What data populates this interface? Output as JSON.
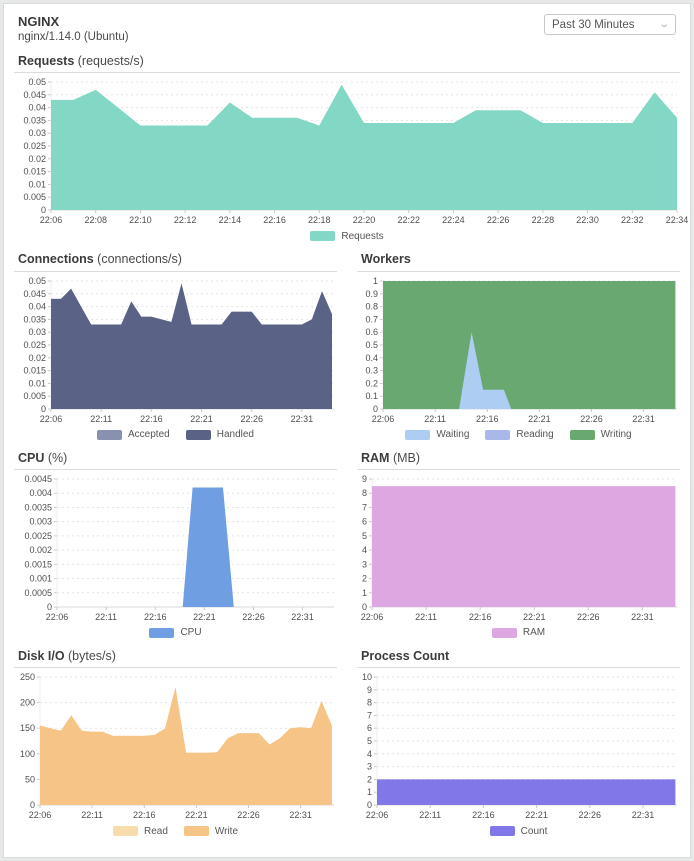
{
  "header": {
    "title": "NGINX",
    "subtitle": "nginx/1.14.0 (Ubuntu)",
    "time_range_value": "Past 30 Minutes"
  },
  "colors": {
    "grid": "#e4e4e4",
    "axis_line": "#d9d9d9",
    "axis_text": "#4f4f4f"
  },
  "chart_data": [
    {
      "id": "requests",
      "type": "area",
      "title": "Requests",
      "unit": "(requests/s)",
      "layout": "full",
      "ylim": [
        0,
        0.05
      ],
      "yticks": [
        0,
        0.005,
        0.01,
        0.015,
        0.02,
        0.025,
        0.03,
        0.035,
        0.04,
        0.045,
        0.05
      ],
      "xdomain": [
        0,
        28
      ],
      "xtick_minutes": [
        0,
        2,
        4,
        6,
        8,
        10,
        12,
        14,
        16,
        18,
        20,
        22,
        24,
        26,
        28
      ],
      "xtick_labels": [
        "22:06",
        "22:08",
        "22:10",
        "22:12",
        "22:14",
        "22:16",
        "22:18",
        "22:20",
        "22:22",
        "22:24",
        "22:26",
        "22:28",
        "22:30",
        "22:32",
        "22:34"
      ],
      "series": [
        {
          "name": "Requests",
          "color": "#82d8c4",
          "x": [
            0,
            1,
            2,
            3,
            4,
            5,
            6,
            7,
            8,
            9,
            10,
            11,
            12,
            13,
            14,
            15,
            16,
            17,
            18,
            19,
            20,
            21,
            22,
            23,
            24,
            25,
            26,
            27,
            28
          ],
          "values": [
            0.043,
            0.043,
            0.047,
            0.04,
            0.033,
            0.033,
            0.033,
            0.033,
            0.042,
            0.036,
            0.036,
            0.036,
            0.033,
            0.049,
            0.034,
            0.034,
            0.034,
            0.034,
            0.034,
            0.039,
            0.039,
            0.039,
            0.034,
            0.034,
            0.034,
            0.034,
            0.034,
            0.046,
            0.036
          ]
        }
      ],
      "legend": [
        {
          "label": "Requests",
          "color": "#82d8c4"
        }
      ]
    },
    {
      "id": "connections",
      "type": "area",
      "title": "Connections",
      "unit": "(connections/s)",
      "layout": "half",
      "ylim": [
        0,
        0.05
      ],
      "yticks": [
        0,
        0.005,
        0.01,
        0.015,
        0.02,
        0.025,
        0.03,
        0.035,
        0.04,
        0.045,
        0.05
      ],
      "xdomain": [
        0,
        28.2
      ],
      "xtick_minutes": [
        0,
        5,
        10,
        15,
        20,
        25
      ],
      "xtick_labels": [
        "22:06",
        "22:11",
        "22:16",
        "22:21",
        "22:26",
        "22:31"
      ],
      "series": [
        {
          "name": "Accepted",
          "color": "#8892b0",
          "x": [
            0,
            1,
            2,
            3,
            4,
            5,
            6,
            7,
            8,
            9,
            10,
            11,
            12,
            13,
            14,
            15,
            16,
            17,
            18,
            19,
            20,
            21,
            22,
            23,
            24,
            25,
            26,
            27,
            28
          ],
          "values": [
            0.043,
            0.043,
            0.047,
            0.04,
            0.033,
            0.033,
            0.033,
            0.033,
            0.042,
            0.036,
            0.036,
            0.035,
            0.034,
            0.049,
            0.033,
            0.033,
            0.033,
            0.033,
            0.038,
            0.038,
            0.038,
            0.033,
            0.033,
            0.033,
            0.033,
            0.033,
            0.035,
            0.046,
            0.037
          ]
        },
        {
          "name": "Handled",
          "color": "#5a6385",
          "x": [
            0,
            1,
            2,
            3,
            4,
            5,
            6,
            7,
            8,
            9,
            10,
            11,
            12,
            13,
            14,
            15,
            16,
            17,
            18,
            19,
            20,
            21,
            22,
            23,
            24,
            25,
            26,
            27,
            28
          ],
          "values": [
            0.043,
            0.043,
            0.047,
            0.04,
            0.033,
            0.033,
            0.033,
            0.033,
            0.042,
            0.036,
            0.036,
            0.035,
            0.034,
            0.049,
            0.033,
            0.033,
            0.033,
            0.033,
            0.038,
            0.038,
            0.038,
            0.033,
            0.033,
            0.033,
            0.033,
            0.033,
            0.035,
            0.046,
            0.037
          ]
        }
      ],
      "legend": [
        {
          "label": "Accepted",
          "color": "#8892b0"
        },
        {
          "label": "Handled",
          "color": "#5a6385"
        }
      ]
    },
    {
      "id": "workers",
      "type": "area",
      "title": "Workers",
      "unit": "",
      "layout": "half",
      "ylim": [
        0,
        1
      ],
      "yticks": [
        0,
        0.1,
        0.2,
        0.3,
        0.4,
        0.5,
        0.6,
        0.7,
        0.8,
        0.9,
        1
      ],
      "xdomain": [
        0,
        28.2
      ],
      "xtick_minutes": [
        0,
        5,
        10,
        15,
        20,
        25
      ],
      "xtick_labels": [
        "22:06",
        "22:11",
        "22:16",
        "22:21",
        "22:26",
        "22:31"
      ],
      "series": [
        {
          "name": "Writing",
          "color": "#6aa872",
          "x": [
            0,
            28.05
          ],
          "values": [
            1,
            1
          ]
        },
        {
          "name": "Reading",
          "color": "#a9b8e8",
          "x": [
            0,
            28.05
          ],
          "values": [
            0,
            0
          ]
        },
        {
          "name": "Waiting",
          "color": "#aecdf2",
          "x": [
            0,
            7.3,
            8.5,
            9.6,
            11.6,
            12.3,
            28.05
          ],
          "values": [
            0,
            0,
            0.6,
            0.15,
            0.15,
            0,
            0
          ]
        }
      ],
      "legend": [
        {
          "label": "Waiting",
          "color": "#aecdf2"
        },
        {
          "label": "Reading",
          "color": "#a9b8e8"
        },
        {
          "label": "Writing",
          "color": "#6aa872"
        }
      ]
    },
    {
      "id": "cpu",
      "type": "area",
      "title": "CPU",
      "unit": "(%)",
      "layout": "half",
      "ylim": [
        0,
        0.0045
      ],
      "yticks": [
        0,
        0.0005,
        0.001,
        0.0015,
        0.002,
        0.0025,
        0.003,
        0.0035,
        0.004,
        0.0045
      ],
      "xdomain": [
        0,
        28.2
      ],
      "xtick_minutes": [
        0,
        5,
        10,
        15,
        20,
        25
      ],
      "xtick_labels": [
        "22:06",
        "22:11",
        "22:16",
        "22:21",
        "22:26",
        "22:31"
      ],
      "series": [
        {
          "name": "CPU",
          "color": "#6f9ee3",
          "x": [
            0,
            12.8,
            13.8,
            16.9,
            18,
            28.05
          ],
          "values": [
            0,
            0,
            0.0042,
            0.0042,
            0,
            0
          ]
        }
      ],
      "legend": [
        {
          "label": "CPU",
          "color": "#6f9ee3"
        }
      ]
    },
    {
      "id": "ram",
      "type": "area",
      "title": "RAM",
      "unit": "(MB)",
      "layout": "half",
      "ylim": [
        0,
        9
      ],
      "yticks": [
        0,
        1,
        2,
        3,
        4,
        5,
        6,
        7,
        8,
        9
      ],
      "xdomain": [
        0,
        28.2
      ],
      "xtick_minutes": [
        0,
        5,
        10,
        15,
        20,
        25
      ],
      "xtick_labels": [
        "22:06",
        "22:11",
        "22:16",
        "22:21",
        "22:26",
        "22:31"
      ],
      "series": [
        {
          "name": "RAM",
          "color": "#dda8e2",
          "x": [
            0,
            28.05
          ],
          "values": [
            8.5,
            8.5
          ]
        }
      ],
      "legend": [
        {
          "label": "RAM",
          "color": "#dda8e2"
        }
      ]
    },
    {
      "id": "disk-io",
      "type": "area",
      "title": "Disk I/O",
      "unit": "(bytes/s)",
      "layout": "half",
      "ylim": [
        0,
        250
      ],
      "yticks": [
        0,
        50,
        100,
        150,
        200,
        250
      ],
      "xdomain": [
        0,
        28.2
      ],
      "xtick_minutes": [
        0,
        5,
        10,
        15,
        20,
        25
      ],
      "xtick_labels": [
        "22:06",
        "22:11",
        "22:16",
        "22:21",
        "22:26",
        "22:31"
      ],
      "series": [
        {
          "name": "Read",
          "color": "#f8dcab",
          "x": [
            0,
            1,
            2,
            3,
            4,
            5,
            6,
            7,
            8,
            9,
            10,
            11,
            12,
            13,
            14,
            15,
            16,
            17,
            18,
            19,
            20,
            21,
            22,
            23,
            24,
            25,
            26,
            27,
            28
          ],
          "values": [
            155,
            150,
            145,
            175,
            145,
            143,
            143,
            135,
            135,
            135,
            135,
            137,
            150,
            230,
            102,
            102,
            102,
            103,
            130,
            140,
            140,
            140,
            118,
            130,
            150,
            152,
            150,
            203,
            155
          ]
        },
        {
          "name": "Write",
          "color": "#f5c486",
          "x": [
            0,
            1,
            2,
            3,
            4,
            5,
            6,
            7,
            8,
            9,
            10,
            11,
            12,
            13,
            14,
            15,
            16,
            17,
            18,
            19,
            20,
            21,
            22,
            23,
            24,
            25,
            26,
            27,
            28
          ],
          "values": [
            155,
            150,
            145,
            175,
            145,
            143,
            143,
            135,
            135,
            135,
            135,
            137,
            150,
            230,
            102,
            102,
            102,
            103,
            130,
            140,
            140,
            140,
            118,
            130,
            150,
            152,
            150,
            203,
            155
          ]
        }
      ],
      "legend": [
        {
          "label": "Read",
          "color": "#f8dcab"
        },
        {
          "label": "Write",
          "color": "#f5c486"
        }
      ]
    },
    {
      "id": "process-count",
      "type": "area",
      "title": "Process Count",
      "unit": "",
      "layout": "half",
      "ylim": [
        0,
        10
      ],
      "yticks": [
        0,
        1,
        2,
        3,
        4,
        5,
        6,
        7,
        8,
        9,
        10
      ],
      "xdomain": [
        0,
        28.2
      ],
      "xtick_minutes": [
        0,
        5,
        10,
        15,
        20,
        25
      ],
      "xtick_labels": [
        "22:06",
        "22:11",
        "22:16",
        "22:21",
        "22:26",
        "22:31"
      ],
      "series": [
        {
          "name": "Count",
          "color": "#8177e8",
          "x": [
            0,
            28.05
          ],
          "values": [
            2,
            2
          ]
        }
      ],
      "legend": [
        {
          "label": "Count",
          "color": "#8177e8"
        }
      ]
    }
  ]
}
